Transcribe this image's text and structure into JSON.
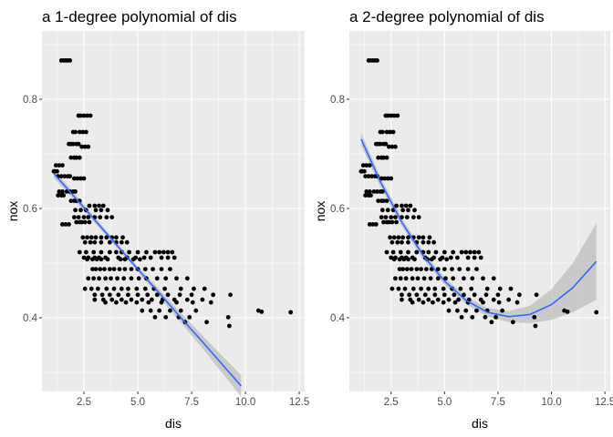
{
  "figure": {
    "background": "#ffffff",
    "panel_background": "#ebebeb",
    "grid_major_color": "#ffffff",
    "point_color": "#000000",
    "fit_line_color": "#3366ff",
    "ribbon_color": "#bdbdbd"
  },
  "chart_data": [
    {
      "type": "scatter",
      "title": "a 1-degree polynomial of dis",
      "xlabel": "dis",
      "ylabel": "nox",
      "xlim": [
        0.55,
        12.75
      ],
      "ylim": [
        0.265,
        0.925
      ],
      "x_ticks": [
        2.5,
        5.0,
        7.5,
        10.0,
        12.5
      ],
      "x_tick_labels": [
        "2.5",
        "5.0",
        "7.5",
        "10.0",
        "12.5"
      ],
      "y_ticks": [
        0.4,
        0.6,
        0.8
      ],
      "y_tick_labels": [
        "0.4",
        "0.6",
        "0.8"
      ],
      "grid": true,
      "smooth": {
        "method": "lm",
        "degree": 1,
        "x": [
          1.1,
          2.0,
          3.0,
          4.0,
          5.0,
          6.0,
          7.0,
          8.0,
          9.0,
          9.8
        ],
        "y": [
          0.664,
          0.624,
          0.579,
          0.534,
          0.489,
          0.445,
          0.4,
          0.356,
          0.311,
          0.275
        ],
        "se": [
          0.008,
          0.0065,
          0.0055,
          0.005,
          0.0055,
          0.007,
          0.009,
          0.012,
          0.016,
          0.02
        ]
      }
    },
    {
      "type": "scatter",
      "title": "a 2-degree polynomial of dis",
      "xlabel": "dis",
      "ylabel": "nox",
      "xlim": [
        0.55,
        12.75
      ],
      "ylim": [
        0.265,
        0.925
      ],
      "x_ticks": [
        2.5,
        5.0,
        7.5,
        10.0,
        12.5
      ],
      "x_tick_labels": [
        "2.5",
        "5.0",
        "7.5",
        "10.0",
        "12.5"
      ],
      "y_ticks": [
        0.4,
        0.6,
        0.8
      ],
      "y_tick_labels": [
        "0.4",
        "0.6",
        "0.8"
      ],
      "grid": true,
      "smooth": {
        "method": "lm",
        "degree": 2,
        "x": [
          1.1,
          2.0,
          3.0,
          4.0,
          5.0,
          6.0,
          7.0,
          8.0,
          9.0,
          10.0,
          11.0,
          12.1
        ],
        "y": [
          0.727,
          0.649,
          0.575,
          0.514,
          0.467,
          0.432,
          0.41,
          0.402,
          0.406,
          0.424,
          0.455,
          0.503
        ],
        "se": [
          0.012,
          0.009,
          0.0075,
          0.007,
          0.0065,
          0.007,
          0.008,
          0.01,
          0.016,
          0.028,
          0.045,
          0.07
        ]
      }
    }
  ],
  "points": {
    "x": [
      1.45,
      1.55,
      1.65,
      1.75,
      1.85,
      2.25,
      2.35,
      2.5,
      2.65,
      2.8,
      2.0,
      2.1,
      2.3,
      2.45,
      2.6,
      1.8,
      1.9,
      2.0,
      2.15,
      2.25,
      2.4,
      2.55,
      2.7,
      1.9,
      2.05,
      2.15,
      2.3,
      1.2,
      1.35,
      1.5,
      1.1,
      1.15,
      1.25,
      1.3,
      1.45,
      1.6,
      1.75,
      1.85,
      2.05,
      2.2,
      2.35,
      2.5,
      1.35,
      1.5,
      1.7,
      1.85,
      2.0,
      2.1,
      1.3,
      1.45,
      1.55,
      1.9,
      2.05,
      2.15,
      2.3,
      2.75,
      3.0,
      3.2,
      3.4,
      2.1,
      2.35,
      2.6,
      3.05,
      3.3,
      3.6,
      2.05,
      2.25,
      2.5,
      2.7,
      3.0,
      3.25,
      3.55,
      3.8,
      2.15,
      2.3,
      2.4,
      2.55,
      2.75,
      1.5,
      1.65,
      1.8,
      2.45,
      2.65,
      2.85,
      3.05,
      3.3,
      3.55,
      3.8,
      4.0,
      4.3,
      2.55,
      2.8,
      3.0,
      3.3,
      3.7,
      4.0,
      4.25,
      4.5,
      2.3,
      2.6,
      2.95,
      3.3,
      3.7,
      4.0,
      4.25,
      4.6,
      5.0,
      5.4,
      5.8,
      6.0,
      6.2,
      6.4,
      6.6,
      2.5,
      2.7,
      3.0,
      3.2,
      3.5,
      4.1,
      4.5,
      4.9,
      5.3,
      5.6,
      6.1,
      6.4,
      6.7,
      2.65,
      2.9,
      3.1,
      3.3,
      3.6,
      4.2,
      4.4,
      4.8,
      5.1,
      2.9,
      3.05,
      3.25,
      3.45,
      3.7,
      3.9,
      4.15,
      4.4,
      4.7,
      5.0,
      5.35,
      5.7,
      6.1,
      6.5,
      2.7,
      2.95,
      3.2,
      3.5,
      3.75,
      4.05,
      4.35,
      4.7,
      5.05,
      5.4,
      5.9,
      6.3,
      6.8,
      7.3,
      2.55,
      2.85,
      3.15,
      3.55,
      3.9,
      4.25,
      4.55,
      4.95,
      5.35,
      5.75,
      6.25,
      7.0,
      7.6,
      8.1,
      3.0,
      3.35,
      3.7,
      4.1,
      4.55,
      5.0,
      5.45,
      5.9,
      6.4,
      6.95,
      7.5,
      8.5,
      9.3,
      3.0,
      3.4,
      3.8,
      4.25,
      4.7,
      5.2,
      5.65,
      6.15,
      6.7,
      7.3,
      8.0,
      3.5,
      4.0,
      4.45,
      4.95,
      5.5,
      6.1,
      6.8,
      7.55,
      8.4,
      5.2,
      5.6,
      6.0,
      6.5,
      7.0,
      7.7,
      5.8,
      6.3,
      6.9,
      7.4,
      9.2,
      7.2,
      8.2,
      9.25,
      10.6,
      10.75,
      12.1
    ],
    "y": [
      0.871,
      0.871,
      0.871,
      0.871,
      0.871,
      0.77,
      0.77,
      0.77,
      0.77,
      0.77,
      0.74,
      0.74,
      0.74,
      0.74,
      0.74,
      0.718,
      0.718,
      0.718,
      0.718,
      0.718,
      0.713,
      0.713,
      0.713,
      0.693,
      0.693,
      0.693,
      0.693,
      0.679,
      0.679,
      0.679,
      0.668,
      0.668,
      0.668,
      0.659,
      0.659,
      0.659,
      0.659,
      0.659,
      0.655,
      0.655,
      0.655,
      0.655,
      0.631,
      0.631,
      0.631,
      0.631,
      0.631,
      0.631,
      0.624,
      0.624,
      0.624,
      0.614,
      0.614,
      0.614,
      0.614,
      0.605,
      0.605,
      0.605,
      0.605,
      0.597,
      0.597,
      0.597,
      0.597,
      0.597,
      0.597,
      0.584,
      0.584,
      0.584,
      0.584,
      0.584,
      0.584,
      0.584,
      0.584,
      0.575,
      0.575,
      0.575,
      0.575,
      0.575,
      0.571,
      0.571,
      0.571,
      0.547,
      0.547,
      0.547,
      0.547,
      0.547,
      0.547,
      0.547,
      0.547,
      0.547,
      0.538,
      0.538,
      0.538,
      0.538,
      0.538,
      0.538,
      0.538,
      0.538,
      0.52,
      0.52,
      0.52,
      0.52,
      0.52,
      0.52,
      0.52,
      0.52,
      0.52,
      0.52,
      0.52,
      0.52,
      0.52,
      0.52,
      0.52,
      0.51,
      0.51,
      0.51,
      0.51,
      0.51,
      0.51,
      0.51,
      0.51,
      0.51,
      0.51,
      0.51,
      0.51,
      0.51,
      0.507,
      0.507,
      0.507,
      0.507,
      0.507,
      0.507,
      0.507,
      0.507,
      0.507,
      0.489,
      0.489,
      0.489,
      0.489,
      0.489,
      0.489,
      0.489,
      0.489,
      0.489,
      0.489,
      0.489,
      0.489,
      0.489,
      0.489,
      0.472,
      0.472,
      0.472,
      0.472,
      0.472,
      0.472,
      0.472,
      0.472,
      0.472,
      0.472,
      0.472,
      0.472,
      0.472,
      0.472,
      0.453,
      0.453,
      0.453,
      0.453,
      0.453,
      0.453,
      0.453,
      0.453,
      0.453,
      0.453,
      0.453,
      0.453,
      0.453,
      0.453,
      0.442,
      0.442,
      0.442,
      0.442,
      0.442,
      0.442,
      0.442,
      0.442,
      0.442,
      0.442,
      0.442,
      0.442,
      0.442,
      0.433,
      0.433,
      0.433,
      0.433,
      0.433,
      0.433,
      0.433,
      0.433,
      0.433,
      0.433,
      0.433,
      0.428,
      0.428,
      0.428,
      0.428,
      0.428,
      0.428,
      0.428,
      0.428,
      0.428,
      0.413,
      0.413,
      0.413,
      0.413,
      0.413,
      0.413,
      0.401,
      0.401,
      0.401,
      0.401,
      0.401,
      0.392,
      0.392,
      0.385,
      0.413,
      0.411,
      0.41
    ]
  }
}
